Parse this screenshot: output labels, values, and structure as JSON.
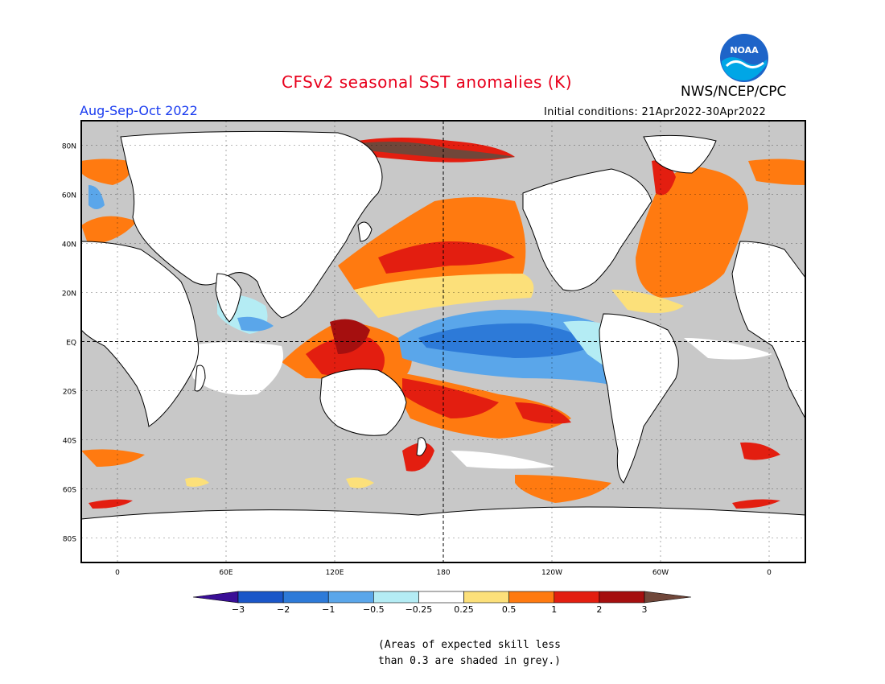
{
  "title": "CFSv2 seasonal SST anomalies (K)",
  "agency": "NWS/NCEP/CPC",
  "logo_text": "NOAA",
  "season": "Aug-Sep-Oct 2022",
  "initial_conditions": "Initial conditions: 21Apr2022-30Apr2022",
  "footnote_line1": "(Areas of expected skill less",
  "footnote_line2": "than 0.3 are shaded in grey.)",
  "map": {
    "lat_labels": [
      "80N",
      "60N",
      "40N",
      "20N",
      "EQ",
      "20S",
      "40S",
      "60S",
      "80S"
    ],
    "lon_labels": [
      "0",
      "60E",
      "120E",
      "180",
      "120W",
      "60W",
      "0"
    ],
    "lon_range": [
      -20,
      380
    ],
    "lat_range": [
      -90,
      90
    ],
    "colors": {
      "land": "#ffffff",
      "skill_mask": "#c8c8c8",
      "coastline": "#000000"
    }
  },
  "colorbar": {
    "tick_labels": [
      "−3",
      "−2",
      "−1",
      "−0.5",
      "−0.25",
      "0.25",
      "0.5",
      "1",
      "2",
      "3"
    ],
    "colors": [
      "#3a0f96",
      "#1a56c8",
      "#2d7ad8",
      "#5aa6ea",
      "#b4ecf4",
      "#ffffff",
      "#fce07a",
      "#ff7a10",
      "#e31e10",
      "#a50f0f",
      "#70473a"
    ]
  },
  "features": [
    {
      "name": "equatorial-pacific-cold",
      "lon": [
        185,
        278
      ],
      "lat": [
        -18,
        8
      ],
      "value": -1
    },
    {
      "name": "north-pacific-warm-band",
      "lon": [
        140,
        225
      ],
      "lat": [
        25,
        45
      ],
      "value": 1
    },
    {
      "name": "western-pacific-warm",
      "lon": [
        118,
        165
      ],
      "lat": [
        -15,
        15
      ],
      "value": 2
    },
    {
      "name": "south-pacific-warm",
      "lon": [
        160,
        265
      ],
      "lat": [
        -40,
        -15
      ],
      "value": 1
    },
    {
      "name": "north-atlantic-warm",
      "lon": [
        290,
        345
      ],
      "lat": [
        25,
        70
      ],
      "value": 1
    },
    {
      "name": "arctic-warm",
      "lon": [
        150,
        260
      ],
      "lat": [
        74,
        85
      ],
      "value": 3
    },
    {
      "name": "southern-ocean-warm",
      "lon": [
        230,
        300
      ],
      "lat": [
        -65,
        -52
      ],
      "value": 1
    },
    {
      "name": "indian-ocean-cool",
      "lon": [
        75,
        100
      ],
      "lat": [
        0,
        20
      ],
      "value": -0.5
    }
  ]
}
